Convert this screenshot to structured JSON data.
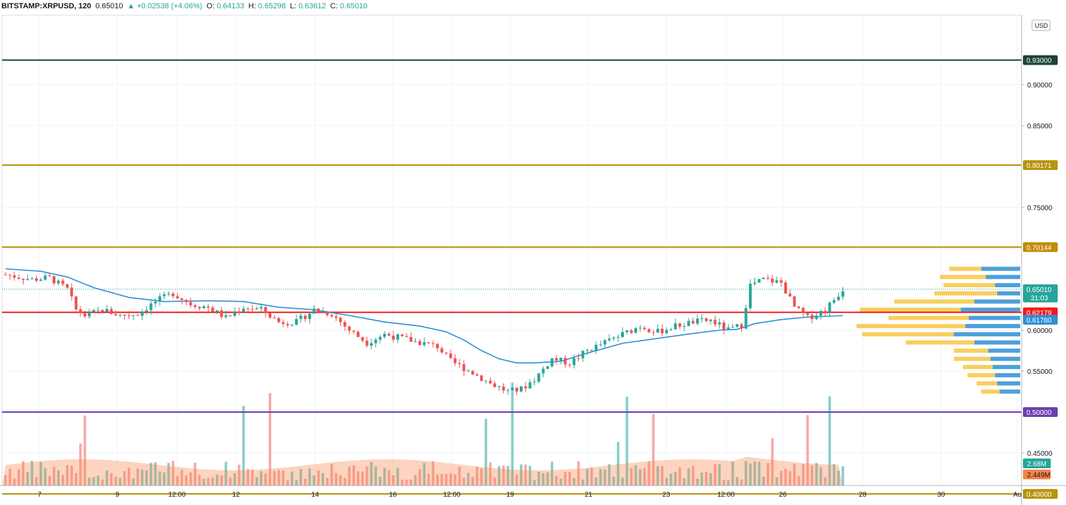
{
  "header": {
    "symbol": "BITSTAMP:XRPUSD, 120",
    "last": "0.65010",
    "change": "▲ +0.02538 (+4.06%)",
    "o_label": "O:",
    "o": "0.64133",
    "h_label": "H:",
    "h": "0.65298",
    "l_label": "L:",
    "l": "0.63612",
    "c_label": "C:",
    "c": "0.65010"
  },
  "currency_badge": "USD",
  "chart_data": {
    "type": "candlestick",
    "y_range": [
      0.405,
      0.95
    ],
    "y_ticks": [
      {
        "value": 0.9,
        "label": "0.90000"
      },
      {
        "value": 0.85,
        "label": "0.85000"
      },
      {
        "value": 0.75,
        "label": "0.75000"
      },
      {
        "value": 0.6,
        "label": "0.60000"
      },
      {
        "value": 0.55,
        "label": "0.55000"
      },
      {
        "value": 0.45,
        "label": "0.45000"
      }
    ],
    "x_labels": [
      "7",
      "9",
      "12:00",
      "12",
      "14",
      "16",
      "12:00",
      "19",
      "21",
      "23",
      "12:00",
      "26",
      "28",
      "30",
      "Au"
    ],
    "horizontal_levels": [
      {
        "value": 0.93,
        "label": "0.93000",
        "color": "#1b4332"
      },
      {
        "value": 0.80171,
        "label": "0.80171",
        "color": "#b7950b"
      },
      {
        "value": 0.70144,
        "label": "0.70144",
        "color": "#c48a0a"
      },
      {
        "value": 0.62179,
        "label": "0.62179",
        "color": "#f21c1c"
      },
      {
        "value": 0.5,
        "label": "0.50000",
        "color": "#6a3fb0"
      },
      {
        "value": 0.4,
        "label": "0.40000",
        "color": "#b7950b"
      }
    ],
    "price_markers": [
      {
        "value": 0.6501,
        "label": "0.65010",
        "sub": "31:03",
        "color": "#26a69a"
      },
      {
        "value": 0.6178,
        "label": "0.61780",
        "color": "#2e8fd4"
      }
    ],
    "volume_markers": [
      {
        "label": "2.68M",
        "color": "#26a69a"
      },
      {
        "label": "2.449M",
        "color": "#f7844a"
      }
    ],
    "price_path": [
      [
        0,
        0.668
      ],
      [
        6,
        0.662
      ],
      [
        10,
        0.664
      ],
      [
        14,
        0.65
      ],
      [
        16,
        0.625
      ],
      [
        18,
        0.618
      ],
      [
        22,
        0.625
      ],
      [
        26,
        0.618
      ],
      [
        30,
        0.62
      ],
      [
        34,
        0.635
      ],
      [
        38,
        0.645
      ],
      [
        42,
        0.632
      ],
      [
        46,
        0.628
      ],
      [
        50,
        0.615
      ],
      [
        54,
        0.628
      ],
      [
        58,
        0.625
      ],
      [
        62,
        0.61
      ],
      [
        66,
        0.61
      ],
      [
        70,
        0.625
      ],
      [
        74,
        0.62
      ],
      [
        78,
        0.6
      ],
      [
        82,
        0.585
      ],
      [
        86,
        0.595
      ],
      [
        90,
        0.59
      ],
      [
        94,
        0.585
      ],
      [
        98,
        0.58
      ],
      [
        101,
        0.562
      ],
      [
        106,
        0.548
      ],
      [
        110,
        0.535
      ],
      [
        114,
        0.525
      ],
      [
        117,
        0.528
      ],
      [
        120,
        0.54
      ],
      [
        124,
        0.565
      ],
      [
        128,
        0.56
      ],
      [
        132,
        0.575
      ],
      [
        136,
        0.585
      ],
      [
        140,
        0.595
      ],
      [
        144,
        0.605
      ],
      [
        148,
        0.598
      ],
      [
        152,
        0.605
      ],
      [
        156,
        0.61
      ],
      [
        160,
        0.612
      ],
      [
        164,
        0.6
      ],
      [
        167,
        0.606
      ],
      [
        169,
        0.655
      ],
      [
        172,
        0.662
      ],
      [
        176,
        0.658
      ],
      [
        179,
        0.628
      ],
      [
        182,
        0.615
      ],
      [
        186,
        0.625
      ],
      [
        190,
        0.6501
      ]
    ],
    "ma_path": [
      [
        0,
        0.675
      ],
      [
        8,
        0.672
      ],
      [
        14,
        0.665
      ],
      [
        20,
        0.652
      ],
      [
        28,
        0.64
      ],
      [
        36,
        0.635
      ],
      [
        46,
        0.636
      ],
      [
        54,
        0.635
      ],
      [
        62,
        0.628
      ],
      [
        70,
        0.625
      ],
      [
        78,
        0.618
      ],
      [
        86,
        0.61
      ],
      [
        94,
        0.605
      ],
      [
        100,
        0.598
      ],
      [
        104,
        0.588
      ],
      [
        108,
        0.575
      ],
      [
        112,
        0.565
      ],
      [
        116,
        0.56
      ],
      [
        120,
        0.56
      ],
      [
        126,
        0.562
      ],
      [
        132,
        0.572
      ],
      [
        140,
        0.584
      ],
      [
        148,
        0.59
      ],
      [
        156,
        0.596
      ],
      [
        162,
        0.6
      ],
      [
        166,
        0.601
      ],
      [
        170,
        0.608
      ],
      [
        176,
        0.613
      ],
      [
        182,
        0.616
      ],
      [
        190,
        0.6178
      ]
    ],
    "volume_profile": [
      {
        "price": 0.675,
        "up": 0.28,
        "down": 0.34
      },
      {
        "price": 0.665,
        "up": 0.4,
        "down": 0.3
      },
      {
        "price": 0.655,
        "up": 0.45,
        "down": 0.22
      },
      {
        "price": 0.645,
        "up": 0.55,
        "down": 0.2
      },
      {
        "price": 0.635,
        "up": 0.7,
        "down": 0.4
      },
      {
        "price": 0.625,
        "up": 0.88,
        "down": 0.52
      },
      {
        "price": 0.615,
        "up": 0.7,
        "down": 0.45
      },
      {
        "price": 0.605,
        "up": 0.95,
        "down": 0.48
      },
      {
        "price": 0.595,
        "up": 0.8,
        "down": 0.58
      },
      {
        "price": 0.585,
        "up": 0.6,
        "down": 0.4
      },
      {
        "price": 0.575,
        "up": 0.3,
        "down": 0.28
      },
      {
        "price": 0.565,
        "up": 0.32,
        "down": 0.26
      },
      {
        "price": 0.555,
        "up": 0.26,
        "down": 0.24
      },
      {
        "price": 0.545,
        "up": 0.24,
        "down": 0.22
      },
      {
        "price": 0.535,
        "up": 0.18,
        "down": 0.2
      },
      {
        "price": 0.525,
        "up": 0.16,
        "down": 0.18
      }
    ]
  }
}
